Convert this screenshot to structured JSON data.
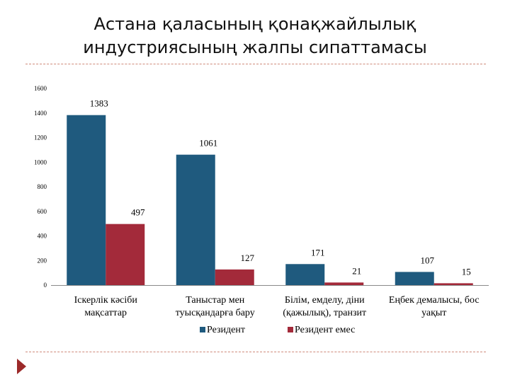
{
  "chart_data": {
    "type": "bar",
    "title_lines": [
      "Астана қаласының қонақжайлылық",
      "индустриясының жалпы сипаттамасы"
    ],
    "categories": [
      [
        "Іскерлік кәсіби",
        "мақсаттар"
      ],
      [
        "Таныстар мен",
        "туысқандарға бару"
      ],
      [
        "Білім, емделу, діни",
        "(қажылық), транзит"
      ],
      [
        "Еңбек демалысы, бос",
        "уақыт"
      ]
    ],
    "series": [
      {
        "name": "Резидент",
        "color": "#1f5a7e",
        "values": [
          1383,
          1061,
          171,
          107
        ]
      },
      {
        "name": "Резидент емес",
        "color": "#a32a3a",
        "values": [
          497,
          127,
          21,
          15
        ]
      }
    ],
    "yticks": [
      0,
      200,
      400,
      600,
      800,
      1000,
      1200,
      1400,
      1600
    ],
    "ylim": [
      0,
      1600
    ],
    "xlabel": "",
    "ylabel": "",
    "legend_position": "bottom"
  }
}
